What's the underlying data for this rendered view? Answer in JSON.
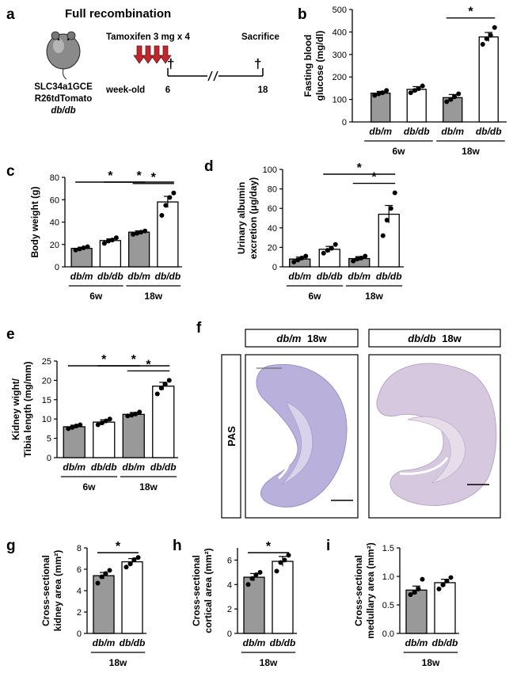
{
  "figure": {
    "panel_labels": [
      "a",
      "b",
      "c",
      "d",
      "e",
      "f",
      "g",
      "h",
      "i"
    ],
    "schematic": {
      "title": "Full recombination",
      "mouse_lines": [
        "SLC34a1GCE",
        "R26tdTomato",
        "db/db"
      ],
      "treatment": "Tamoxifen 3 mg x 4",
      "sacrifice": "Sacrifice",
      "timeline_label": "week-old",
      "t_start": "6",
      "t_end": "18",
      "dagger": "†",
      "arrow_color": "#c0282d"
    },
    "histology": {
      "row_label": "PAS",
      "columns": [
        {
          "genotype": "db/m",
          "age": "18w"
        },
        {
          "genotype": "db/db",
          "age": "18w"
        }
      ],
      "stain_color": "#b9b1dc",
      "medulla_color": "#d8d3ea"
    },
    "colors": {
      "dbm_fill": "#999999",
      "dbdb_fill": "#ffffff",
      "stroke": "#000000"
    }
  },
  "chart_data": [
    {
      "panel": "b",
      "type": "bar",
      "ylabel": [
        "Fasting blood",
        "glucose (mg/dl)"
      ],
      "categories": [
        "db/m",
        "db/db",
        "db/m",
        "db/db"
      ],
      "groups": [
        {
          "label": "6w",
          "span": [
            0,
            1
          ]
        },
        {
          "label": "18w",
          "span": [
            2,
            3
          ]
        }
      ],
      "values": [
        128,
        145,
        108,
        378
      ],
      "errors": [
        8,
        12,
        14,
        20
      ],
      "points": [
        [
          118,
          125,
          130,
          140
        ],
        [
          130,
          140,
          148,
          160
        ],
        [
          90,
          100,
          112,
          125
        ],
        [
          345,
          370,
          385,
          420
        ]
      ],
      "ylim": [
        0,
        500
      ],
      "yticks": [
        0,
        100,
        200,
        300,
        400,
        500
      ],
      "significance": [
        {
          "pair": [
            2,
            3
          ],
          "label": "*"
        }
      ]
    },
    {
      "panel": "c",
      "type": "bar",
      "ylabel": [
        "Body weight (g)"
      ],
      "categories": [
        "db/m",
        "db/db",
        "db/m",
        "db/db"
      ],
      "groups": [
        {
          "label": "6w",
          "span": [
            0,
            1
          ]
        },
        {
          "label": "18w",
          "span": [
            2,
            3
          ]
        }
      ],
      "values": [
        16.5,
        23.5,
        31,
        58
      ],
      "errors": [
        1,
        1.5,
        1.2,
        5
      ],
      "points": [
        [
          15,
          16,
          17,
          18
        ],
        [
          21,
          23,
          24,
          26
        ],
        [
          29,
          30,
          31,
          32
        ],
        [
          46,
          55,
          62,
          66
        ]
      ],
      "ylim": [
        0,
        80
      ],
      "yticks": [
        0,
        20,
        40,
        60,
        80
      ],
      "significance": [
        {
          "pair": [
            0,
            2
          ],
          "label": "*"
        },
        {
          "pair": [
            2,
            3
          ],
          "label": "*"
        },
        {
          "pair": [
            1,
            3
          ],
          "label": "*"
        }
      ]
    },
    {
      "panel": "d",
      "type": "bar",
      "ylabel": [
        "Urinary albumin",
        "excretion (μg/day)"
      ],
      "categories": [
        "db/m",
        "db/db",
        "db/m",
        "db/db"
      ],
      "groups": [
        {
          "label": "6w",
          "span": [
            0,
            1
          ]
        },
        {
          "label": "18w",
          "span": [
            2,
            3
          ]
        }
      ],
      "values": [
        8,
        18,
        8.5,
        54
      ],
      "errors": [
        2,
        3,
        2,
        9
      ],
      "points": [
        [
          5,
          7,
          9,
          11
        ],
        [
          14,
          17,
          19,
          23
        ],
        [
          6,
          8,
          9,
          11
        ],
        [
          32,
          48,
          60,
          76
        ]
      ],
      "ylim": [
        0,
        100
      ],
      "yticks": [
        0,
        20,
        40,
        60,
        80,
        100
      ],
      "significance": [
        {
          "pair": [
            2,
            3
          ],
          "label": "*"
        },
        {
          "pair": [
            1,
            3
          ],
          "label": "*"
        }
      ]
    },
    {
      "panel": "e",
      "type": "bar",
      "ylabel": [
        "Kidney wight/",
        "Tibia length (mg/mm)"
      ],
      "categories": [
        "db/m",
        "db/db",
        "db/m",
        "db/db"
      ],
      "groups": [
        {
          "label": "6w",
          "span": [
            0,
            1
          ]
        },
        {
          "label": "18w",
          "span": [
            2,
            3
          ]
        }
      ],
      "values": [
        8,
        9.2,
        11.2,
        18.5
      ],
      "errors": [
        0.4,
        0.6,
        0.5,
        1
      ],
      "points": [
        [
          7.5,
          7.8,
          8.2,
          8.5
        ],
        [
          8.5,
          9,
          9.5,
          10
        ],
        [
          10.8,
          11,
          11.3,
          11.8
        ],
        [
          16.5,
          18,
          19,
          20
        ]
      ],
      "ylim": [
        0,
        25
      ],
      "yticks": [
        0,
        5,
        10,
        15,
        20,
        25
      ],
      "significance": [
        {
          "pair": [
            0,
            2
          ],
          "label": "*"
        },
        {
          "pair": [
            2,
            3
          ],
          "label": "*"
        },
        {
          "pair": [
            1,
            3
          ],
          "label": "*"
        }
      ]
    },
    {
      "panel": "g",
      "type": "bar",
      "ylabel": [
        "Cross-sectional",
        "kidney area (mm²)"
      ],
      "categories": [
        "db/m",
        "db/db"
      ],
      "groups": [
        {
          "label": "18w",
          "span": [
            0,
            1
          ]
        }
      ],
      "values": [
        5.4,
        6.7
      ],
      "errors": [
        0.3,
        0.3
      ],
      "points": [
        [
          4.7,
          5.3,
          5.6,
          5.9
        ],
        [
          6.2,
          6.5,
          6.9,
          7.1
        ]
      ],
      "ylim": [
        0,
        8
      ],
      "yticks": [
        0,
        2,
        4,
        6,
        8
      ],
      "significance": [
        {
          "pair": [
            0,
            1
          ],
          "label": "*"
        }
      ]
    },
    {
      "panel": "h",
      "type": "bar",
      "ylabel": [
        "Cross-sectional",
        "cortical area (mm²)"
      ],
      "categories": [
        "db/m",
        "db/db"
      ],
      "groups": [
        {
          "label": "18w",
          "span": [
            0,
            1
          ]
        }
      ],
      "values": [
        4.6,
        5.9
      ],
      "errors": [
        0.3,
        0.4
      ],
      "points": [
        [
          4.0,
          4.5,
          4.8,
          5.0
        ],
        [
          5.1,
          5.8,
          6.0,
          6.4
        ]
      ],
      "ylim": [
        0,
        7
      ],
      "yticks": [
        0,
        2,
        4,
        6
      ],
      "significance": [
        {
          "pair": [
            0,
            1
          ],
          "label": "*"
        }
      ]
    },
    {
      "panel": "i",
      "type": "bar",
      "ylabel": [
        "Cross-sectional",
        "medullary area (mm²)"
      ],
      "categories": [
        "db/m",
        "db/db"
      ],
      "groups": [
        {
          "label": "18w",
          "span": [
            0,
            1
          ]
        }
      ],
      "values": [
        0.76,
        0.89
      ],
      "errors": [
        0.07,
        0.06
      ],
      "points": [
        [
          0.68,
          0.72,
          0.78,
          0.95
        ],
        [
          0.78,
          0.85,
          0.92,
          0.98
        ]
      ],
      "ylim": [
        0,
        1.5
      ],
      "yticks": [
        0.0,
        0.5,
        1.0,
        1.5
      ],
      "significance": []
    }
  ]
}
